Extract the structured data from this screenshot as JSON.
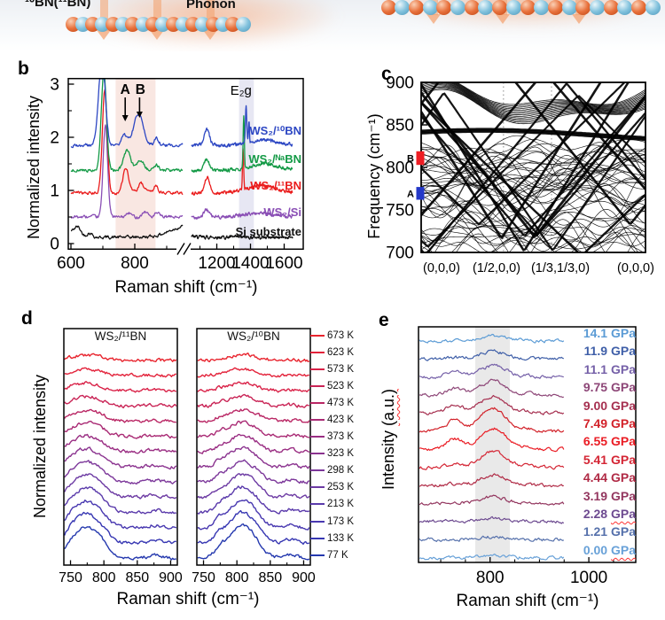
{
  "panel_a": {
    "material_label": "¹⁰BN(¹¹BN)",
    "phonon_label": "Phonon",
    "boron_atom_color": "#e2622b",
    "nitrogen_atom_color": "#6cb6d6",
    "phonon_arrow_color": "#f2a173"
  },
  "panel_letters": {
    "b": "b",
    "c": "c",
    "d": "d",
    "e": "e"
  },
  "chart_data": [
    {
      "panel": "b",
      "type": "line",
      "xlabel": "Raman shift (cm⁻¹)",
      "ylabel": "Normalized intensity",
      "xlim_segments": [
        [
          600,
          950
        ],
        [
          1050,
          1650
        ]
      ],
      "axis_break": true,
      "xticks": [
        600,
        800,
        1200,
        1400,
        1600
      ],
      "xticks_minor": [
        700,
        900,
        1100,
        1300,
        1500
      ],
      "yticks": [
        0,
        1,
        2,
        3
      ],
      "yticks_minor": [
        0.5,
        1.5,
        2.5
      ],
      "ylim": [
        0,
        3.1
      ],
      "shaded_bands": [
        {
          "x0": 740,
          "x1": 865,
          "color": "#f9e7e2"
        },
        {
          "x0": 1332,
          "x1": 1420,
          "color": "#e7e7f3"
        }
      ],
      "annotations": [
        {
          "text": "A",
          "x": 770
        },
        {
          "text": "B",
          "x": 815
        },
        {
          "text": "E₂g",
          "x": 1370
        }
      ],
      "series": [
        {
          "label": "WS₂/¹⁰BN",
          "color": "#2d47c3",
          "offset": 1.85,
          "peaks": [
            [
              697,
              1.7,
              10
            ],
            [
              768,
              0.18,
              9
            ],
            [
              812,
              0.6,
              15
            ],
            [
              868,
              0.13,
              7
            ],
            [
              1142,
              0.3,
              15
            ],
            [
              1374,
              0.72,
              4
            ],
            [
              1391,
              0.4,
              3
            ],
            [
              1480,
              0.1,
              80
            ]
          ]
        },
        {
          "label": "WS₂/ᴺᵃBN",
          "color": "#149a46",
          "offset": 1.38,
          "peaks": [
            [
              703,
              1.85,
              8
            ],
            [
              776,
              0.36,
              11
            ],
            [
              818,
              0.2,
              11
            ],
            [
              868,
              0.1,
              7
            ],
            [
              1140,
              0.2,
              15
            ],
            [
              1360,
              0.95,
              3.5
            ],
            [
              1480,
              0.12,
              80
            ]
          ]
        },
        {
          "label": "WS₂/¹¹BN",
          "color": "#ea1c1c",
          "offset": 0.95,
          "peaks": [
            [
              706,
              1.95,
              7.5
            ],
            [
              772,
              0.48,
              9
            ],
            [
              820,
              0.17,
              10
            ],
            [
              866,
              0.15,
              7
            ],
            [
              1142,
              0.3,
              15
            ],
            [
              1356,
              0.8,
              3.5
            ],
            [
              1460,
              0.14,
              90
            ]
          ]
        },
        {
          "label": "WS₂/Si",
          "color": "#8a4fb5",
          "offset": 0.5,
          "peaks": [
            [
              708,
              1.75,
              7
            ],
            [
              782,
              0.07,
              8
            ],
            [
              832,
              0.1,
              9
            ],
            [
              870,
              0.07,
              7
            ],
            [
              1140,
              0.14,
              15
            ],
            [
              1450,
              0.07,
              90
            ]
          ]
        },
        {
          "label": "Si substrate",
          "color": "#111111",
          "offset": 0.12,
          "peaks": [
            [
              600,
              0.1,
              15
            ],
            [
              622,
              0.16,
              10
            ],
            [
              658,
              0.08,
              9
            ],
            [
              955,
              0.2,
              45
            ]
          ]
        }
      ]
    },
    {
      "panel": "c",
      "type": "line",
      "ylabel": "Frequency (cm⁻¹)",
      "ylim": [
        700,
        900
      ],
      "yticks": [
        700,
        750,
        800,
        850,
        900
      ],
      "kpath_labels": [
        "(0,0,0)",
        "(1/2,0,0)",
        "(1/3,1/3,0)",
        "(0,0,0)"
      ],
      "kpath_positions": [
        0,
        0.367,
        0.581,
        1
      ],
      "mode_markers": [
        {
          "label": "B",
          "color": "#ee1d23",
          "freq_range": [
            803,
            819
          ]
        },
        {
          "label": "A",
          "color": "#2438c8",
          "freq_range": [
            762,
            777
          ]
        }
      ],
      "description": "Dense folded phonon band structure, 700–900 cm⁻¹, with dotted zone-boundary lines at (1/2,0,0) and (1/3,1/3,0)"
    },
    {
      "panel": "d",
      "type": "line",
      "xlabel": "Raman shift (cm⁻¹)",
      "ylabel": "Normalized intensity",
      "xlim": [
        740,
        910
      ],
      "xticks": [
        750,
        800,
        850,
        900
      ],
      "xticks_minor": [
        775,
        825,
        875
      ],
      "subplots": [
        {
          "title": "WS₂/¹¹BN",
          "peak_center": 772
        },
        {
          "title": "WS₂/¹⁰BN",
          "peak_center": 806
        }
      ],
      "temperatures": [
        {
          "label": "673 K",
          "color": "#e8232d",
          "relative_intensity": 0.12
        },
        {
          "label": "623 K",
          "color": "#e3223a",
          "relative_intensity": 0.16
        },
        {
          "label": "573 K",
          "color": "#d92147",
          "relative_intensity": 0.2
        },
        {
          "label": "523 K",
          "color": "#c92355",
          "relative_intensity": 0.26
        },
        {
          "label": "473 K",
          "color": "#b92664",
          "relative_intensity": 0.32
        },
        {
          "label": "423 K",
          "color": "#a92a74",
          "relative_intensity": 0.4
        },
        {
          "label": "373 K",
          "color": "#9a2e83",
          "relative_intensity": 0.47
        },
        {
          "label": "323 K",
          "color": "#8b338f",
          "relative_intensity": 0.55
        },
        {
          "label": "298 K",
          "color": "#7c379a",
          "relative_intensity": 0.62
        },
        {
          "label": "253 K",
          "color": "#6c3aa3",
          "relative_intensity": 0.7
        },
        {
          "label": "213 K",
          "color": "#5a3aab",
          "relative_intensity": 0.78
        },
        {
          "label": "173 K",
          "color": "#4838b0",
          "relative_intensity": 0.85
        },
        {
          "label": "133 K",
          "color": "#3636b2",
          "relative_intensity": 0.93
        },
        {
          "label": "77 K",
          "color": "#2438ae",
          "relative_intensity": 1.0
        }
      ]
    },
    {
      "panel": "e",
      "type": "line",
      "xlabel": "Raman shift (cm⁻¹)",
      "ylabel": "Intensity (a.u.)",
      "ylabel_squiggle_part": "(a.u.)",
      "xlim": [
        655,
        1095
      ],
      "xticks": [
        800,
        1000
      ],
      "xticks_minor": [
        700,
        750,
        850,
        900,
        950,
        1050
      ],
      "shaded_band": [
        770,
        840
      ],
      "peak_center": 806,
      "pressures": [
        {
          "label": "14.1 GPa",
          "color": "#5b9bd5",
          "relative_intensity": 0.2,
          "squiggle": false
        },
        {
          "label": "11.9 GPa",
          "color": "#3f5fa8",
          "relative_intensity": 0.34,
          "squiggle": false
        },
        {
          "label": "11.1 GPa",
          "color": "#7560a8",
          "relative_intensity": 0.5,
          "squiggle": false
        },
        {
          "label": "9.75 GPa",
          "color": "#8d4677",
          "relative_intensity": 0.62,
          "squiggle": false
        },
        {
          "label": "9.00 GPa",
          "color": "#a63050",
          "relative_intensity": 0.75,
          "squiggle": false
        },
        {
          "label": "7.49 GPa",
          "color": "#d22129",
          "relative_intensity": 1.0,
          "squiggle": false
        },
        {
          "label": "6.55 GPa",
          "color": "#ea1c24",
          "relative_intensity": 0.92,
          "squiggle": false
        },
        {
          "label": "5.41 GPa",
          "color": "#d42534",
          "relative_intensity": 0.7,
          "squiggle": false
        },
        {
          "label": "4.44 GPa",
          "color": "#b02a45",
          "relative_intensity": 0.46,
          "squiggle": false
        },
        {
          "label": "3.19 GPa",
          "color": "#93365f",
          "relative_intensity": 0.3,
          "squiggle": false
        },
        {
          "label": "2.28 GPa",
          "color": "#6d4a90",
          "relative_intensity": 0.18,
          "squiggle": true
        },
        {
          "label": "1.21 GPa",
          "color": "#5570ab",
          "relative_intensity": 0.12,
          "squiggle": false
        },
        {
          "label": "0.00 GPa",
          "color": "#68a1d8",
          "relative_intensity": 0.12,
          "squiggle": true
        }
      ]
    }
  ]
}
